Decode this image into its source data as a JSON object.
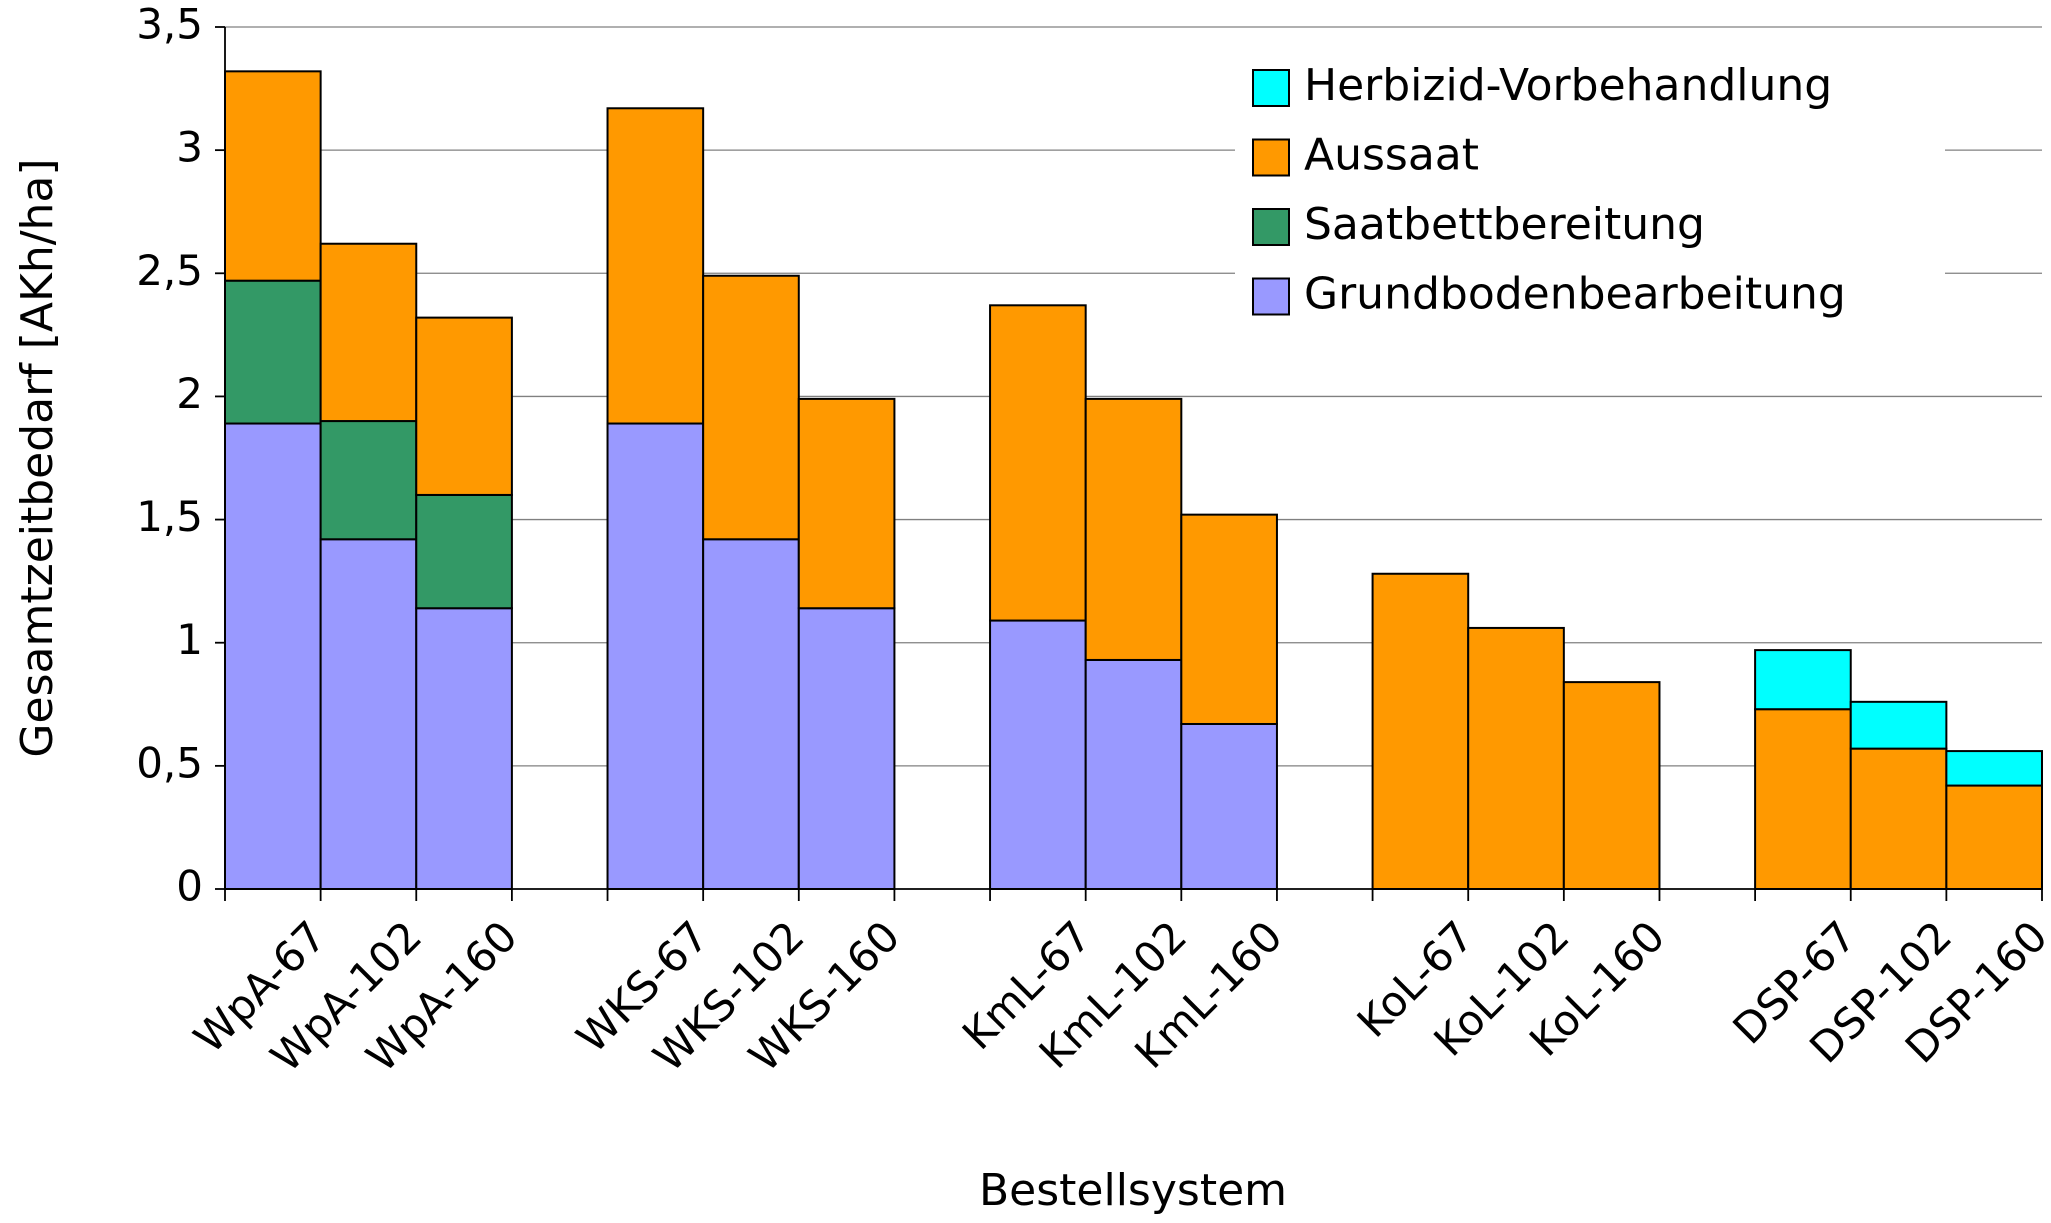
{
  "chart_data": {
    "type": "bar",
    "stacked": true,
    "x_label": "Bestellsystem",
    "y_label": "Gesamtzeitbedarf [AKh/ha]",
    "categories": [
      "WpA-67",
      "WpA-102",
      "WpA-160",
      null,
      "WKS-67",
      "WKS-102",
      "WKS-160",
      null,
      "KmL-67",
      "KmL-102",
      "KmL-160",
      null,
      "KoL-67",
      "KoL-102",
      "KoL-160",
      null,
      "DSP-67",
      "DSP-102",
      "DSP-160"
    ],
    "series": [
      {
        "name": "Grundbodenbearbeitung",
        "color": "#9999ff",
        "values": [
          1.89,
          1.42,
          1.14,
          null,
          1.89,
          1.42,
          1.14,
          null,
          1.09,
          0.93,
          0.67,
          null,
          null,
          null,
          null,
          null,
          null,
          null,
          null
        ]
      },
      {
        "name": "Saatbettbereitung",
        "color": "#339966",
        "values": [
          0.58,
          0.48,
          0.46,
          null,
          null,
          null,
          null,
          null,
          null,
          null,
          null,
          null,
          null,
          null,
          null,
          null,
          null,
          null,
          null
        ]
      },
      {
        "name": "Aussaat",
        "color": "#ff9900",
        "values": [
          0.85,
          0.72,
          0.72,
          null,
          1.28,
          1.07,
          0.85,
          null,
          1.28,
          1.06,
          0.85,
          null,
          1.28,
          1.06,
          0.84,
          null,
          0.73,
          0.57,
          0.42
        ]
      },
      {
        "name": "Herbizid-Vorbehandlung",
        "color": "#00ffff",
        "values": [
          null,
          null,
          null,
          null,
          null,
          null,
          null,
          null,
          null,
          null,
          null,
          null,
          null,
          null,
          null,
          null,
          0.24,
          0.19,
          0.14
        ]
      }
    ],
    "ylim": [
      0,
      3.5
    ],
    "yticks": [
      0,
      {
        "value": 0.5,
        "label": "0,5"
      },
      1,
      {
        "value": 1.5,
        "label": "1,5"
      },
      2,
      {
        "value": 2.5,
        "label": "2,5"
      },
      3,
      {
        "value": 3.5,
        "label": "3,5"
      }
    ],
    "grid": true,
    "legend": "upper right"
  }
}
